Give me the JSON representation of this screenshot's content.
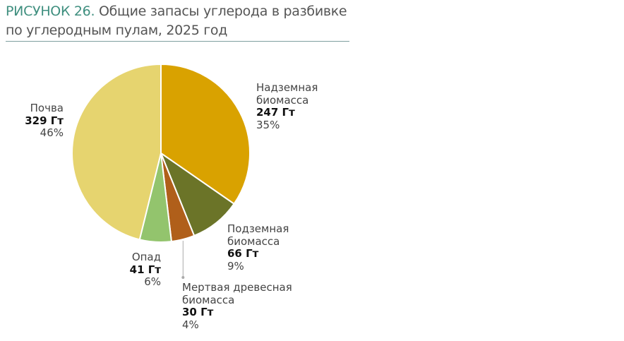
{
  "figure": {
    "label": "РИСУНОК 26.",
    "title": " Общие запасы углерода в разбивке по углеродным пулам, 2025 год"
  },
  "chart_data": {
    "type": "pie",
    "title": "Общие запасы углерода в разбивке по углеродным пулам, 2025 год",
    "unit": "Гт",
    "slices": [
      {
        "name": "Надземная биомасса",
        "value": 247,
        "value_label": "247 Гт",
        "percent_label": "35%",
        "color": "#d9a200"
      },
      {
        "name": "Подземная биомасса",
        "value": 66,
        "value_label": "66 Гт",
        "percent_label": "9%",
        "color": "#6b7428"
      },
      {
        "name": "Мертвая древесная биомасса",
        "value": 30,
        "value_label": "30 Гт",
        "percent_label": "4%",
        "color": "#b05f1a"
      },
      {
        "name": "Опад",
        "value": 41,
        "value_label": "41 Гт",
        "percent_label": "6%",
        "color": "#93c46d"
      },
      {
        "name": "Почва",
        "value": 329,
        "value_label": "329 Гт",
        "percent_label": "46%",
        "color": "#e6d46f"
      }
    ]
  }
}
